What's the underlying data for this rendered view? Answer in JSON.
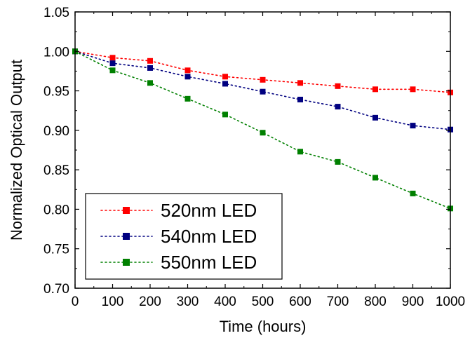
{
  "chart_data": {
    "type": "line",
    "title": "",
    "xlabel": "Time (hours)",
    "ylabel": "Normalized Optical Output",
    "xlim": [
      0,
      1000
    ],
    "ylim": [
      0.7,
      1.05
    ],
    "xticks": [
      "0",
      "100",
      "200",
      "300",
      "400",
      "500",
      "600",
      "700",
      "800",
      "900",
      "1000"
    ],
    "yticks": [
      "0.70",
      "0.75",
      "0.80",
      "0.85",
      "0.90",
      "0.95",
      "1.00",
      "1.05"
    ],
    "grid": false,
    "legend_position": "bottom-left",
    "x": [
      0,
      100,
      200,
      300,
      400,
      500,
      600,
      700,
      800,
      900,
      1000
    ],
    "series": [
      {
        "name": "520nm LED",
        "color": "#ff0000",
        "values": [
          1.0,
          0.992,
          0.988,
          0.976,
          0.968,
          0.964,
          0.96,
          0.956,
          0.952,
          0.952,
          0.948
        ]
      },
      {
        "name": "540nm LED",
        "color": "#000080",
        "values": [
          1.0,
          0.985,
          0.979,
          0.968,
          0.959,
          0.949,
          0.939,
          0.93,
          0.916,
          0.906,
          0.901
        ]
      },
      {
        "name": "550nm LED",
        "color": "#008000",
        "values": [
          1.0,
          0.976,
          0.96,
          0.94,
          0.92,
          0.897,
          0.873,
          0.86,
          0.84,
          0.82,
          0.801
        ]
      }
    ]
  }
}
